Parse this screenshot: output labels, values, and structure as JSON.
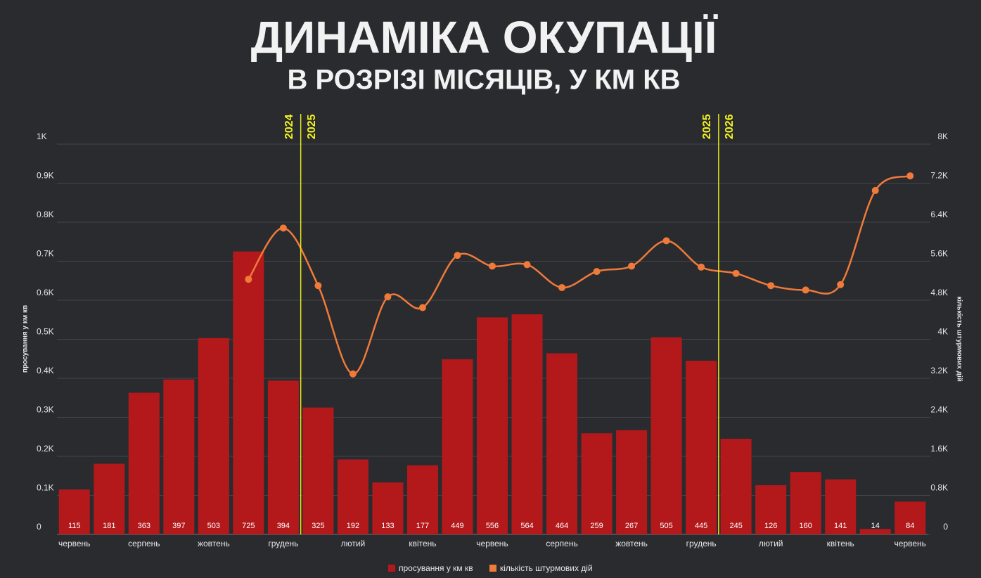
{
  "chart_data": {
    "type": "bar-line",
    "title": "ДИНАМІКА ОКУПАЦІЇ",
    "subtitle": "В РОЗРІЗІ МІСЯЦІВ, У КМ КВ",
    "y_label": "просування у км кв",
    "y2_label": "кількість штурмових дій",
    "categories": [
      "червень",
      null,
      "серпень",
      null,
      "жовтень",
      null,
      "грудень",
      null,
      "лютий",
      null,
      "квітень",
      null,
      "червень",
      null,
      "серпень",
      null,
      "жовтень",
      null,
      "грудень",
      null,
      "лютий",
      null,
      "квітень",
      null,
      "червень"
    ],
    "series": [
      {
        "name": "просування у км кв",
        "type": "bar",
        "color": "#b3191b",
        "values": [
          115,
          181,
          363,
          397,
          503,
          725,
          394,
          325,
          192,
          133,
          177,
          449,
          556,
          564,
          464,
          259,
          267,
          505,
          445,
          245,
          126,
          160,
          141,
          14,
          84
        ]
      },
      {
        "name": "кількість штурмових дій",
        "type": "line",
        "axis": "y2",
        "color": "#f07a3a",
        "values": [
          null,
          null,
          null,
          null,
          null,
          5230,
          6280,
          5100,
          3290,
          4870,
          4650,
          5720,
          5500,
          5530,
          5060,
          5390,
          5500,
          6020,
          5480,
          5350,
          5100,
          5010,
          5120,
          7050,
          7350
        ]
      }
    ],
    "year_markers": [
      {
        "before": "2024",
        "after": "2025"
      },
      {
        "before": "2025",
        "after": "2026"
      }
    ],
    "ylim": [
      0,
      1000
    ],
    "yticks": [
      0,
      {
        "value": 100,
        "label": "0.1K"
      },
      {
        "value": 200,
        "label": "0.2K"
      },
      {
        "value": 300,
        "label": "0.3K"
      },
      {
        "value": 400,
        "label": "0.4K"
      },
      {
        "value": 500,
        "label": "0.5K"
      },
      {
        "value": 600,
        "label": "0.6K"
      },
      {
        "value": 700,
        "label": "0.7K"
      },
      {
        "value": 800,
        "label": "0.8K"
      },
      {
        "value": 900,
        "label": "0.9K"
      },
      {
        "value": 1000,
        "label": "1K"
      }
    ],
    "y2lim": [
      0,
      8000
    ],
    "y2ticks": [
      0,
      {
        "value": 800,
        "label": "0.8K"
      },
      {
        "value": 1600,
        "label": "1.6K"
      },
      {
        "value": 2400,
        "label": "2.4K"
      },
      {
        "value": 3200,
        "label": "3.2K"
      },
      {
        "value": 4000,
        "label": "4K"
      },
      {
        "value": 4800,
        "label": "4.8K"
      },
      {
        "value": 5600,
        "label": "5.6K"
      },
      {
        "value": 6400,
        "label": "6.4K"
      },
      {
        "value": 7200,
        "label": "7.2K"
      },
      {
        "value": 8000,
        "label": "8K"
      }
    ],
    "grid": true
  }
}
